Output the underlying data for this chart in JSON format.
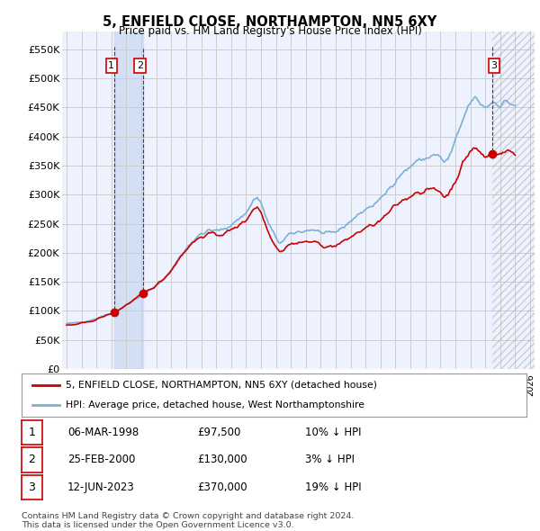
{
  "title": "5, ENFIELD CLOSE, NORTHAMPTON, NN5 6XY",
  "subtitle": "Price paid vs. HM Land Registry's House Price Index (HPI)",
  "legend_line1": "5, ENFIELD CLOSE, NORTHAMPTON, NN5 6XY (detached house)",
  "legend_line2": "HPI: Average price, detached house, West Northamptonshire",
  "footer": "Contains HM Land Registry data © Crown copyright and database right 2024.\nThis data is licensed under the Open Government Licence v3.0.",
  "price_color": "#cc0000",
  "hpi_color": "#7ab0d4",
  "ylim": [
    0,
    580000
  ],
  "yticks": [
    0,
    50000,
    100000,
    150000,
    200000,
    250000,
    300000,
    350000,
    400000,
    450000,
    500000,
    550000
  ],
  "ytick_labels": [
    "£0",
    "£50K",
    "£100K",
    "£150K",
    "£200K",
    "£250K",
    "£300K",
    "£350K",
    "£400K",
    "£450K",
    "£500K",
    "£550K"
  ],
  "xlim_start": 1994.7,
  "xlim_end": 2026.3,
  "grid_color": "#cccccc",
  "bg_color": "#ffffff",
  "plot_bg": "#eef2ff",
  "sale_years": [
    1998.17,
    2000.12,
    2023.45
  ],
  "sale_prices": [
    97500,
    130000,
    370000
  ],
  "sale_labels": [
    "1",
    "2",
    "3"
  ],
  "table_rows": [
    [
      "1",
      "06-MAR-1998",
      "£97,500",
      "10% ↓ HPI"
    ],
    [
      "2",
      "25-FEB-2000",
      "£130,000",
      "3% ↓ HPI"
    ],
    [
      "3",
      "12-JUN-2023",
      "£370,000",
      "19% ↓ HPI"
    ]
  ]
}
